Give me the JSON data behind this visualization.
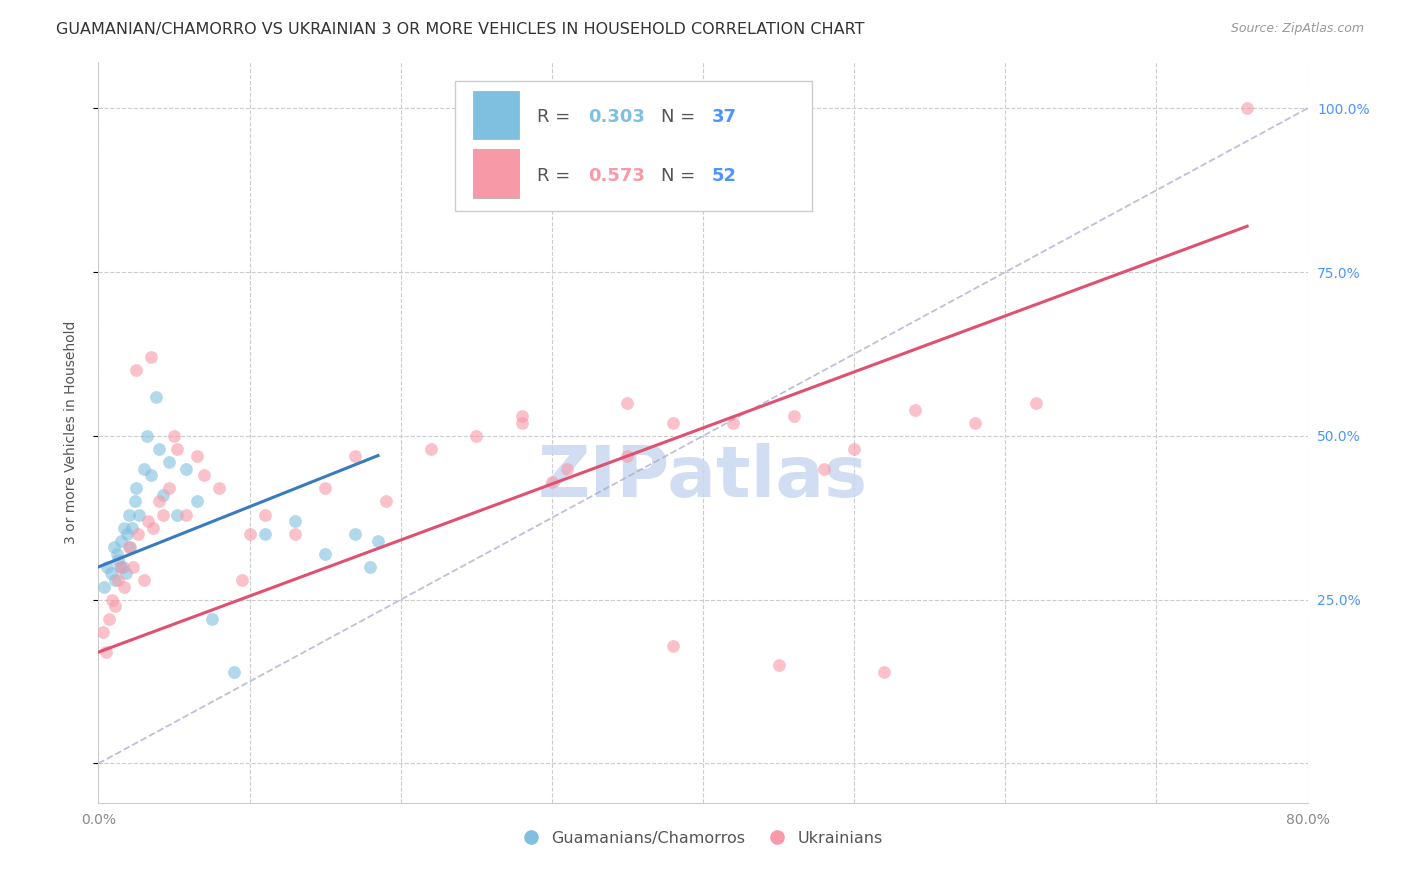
{
  "title": "GUAMANIAN/CHAMORRO VS UKRAINIAN 3 OR MORE VEHICLES IN HOUSEHOLD CORRELATION CHART",
  "source": "Source: ZipAtlas.com",
  "ylabel": "3 or more Vehicles in Household",
  "xlim": [
    0.0,
    80.0
  ],
  "ylim": [
    -6.0,
    107.0
  ],
  "yticks": [
    0,
    25,
    50,
    75,
    100
  ],
  "ytick_labels_right": [
    "",
    "25.0%",
    "50.0%",
    "75.0%",
    "100.0%"
  ],
  "xtick_positions": [
    0,
    10,
    20,
    30,
    40,
    50,
    60,
    70,
    80
  ],
  "xtick_labels": [
    "0.0%",
    "",
    "",
    "",
    "",
    "",
    "",
    "",
    "80.0%"
  ],
  "background_color": "#ffffff",
  "grid_color": "#cccccc",
  "watermark_text": "ZIPatlas",
  "watermark_color": "#c8d8f0",
  "legend_R1": "0.303",
  "legend_N1": "37",
  "legend_R2": "0.573",
  "legend_N2": "52",
  "legend_color1": "#7fbfdf",
  "legend_color2": "#f899a8",
  "series1_color": "#7fbfdf",
  "series2_color": "#f899a8",
  "reg_line1_color": "#3a7abf",
  "reg_line2_color": "#e05070",
  "right_tick_color": "#4d94ff",
  "title_fontsize": 11.5,
  "tick_fontsize": 10,
  "guamanian_x": [
    0.4,
    0.6,
    0.8,
    1.0,
    1.1,
    1.2,
    1.3,
    1.4,
    1.5,
    1.6,
    1.7,
    1.8,
    1.9,
    2.0,
    2.1,
    2.2,
    2.4,
    2.5,
    2.7,
    3.0,
    3.2,
    3.5,
    3.8,
    4.0,
    4.3,
    4.7,
    5.2,
    5.8,
    6.5,
    7.5,
    9.0,
    11.0,
    13.0,
    15.0,
    17.0,
    18.0,
    18.5
  ],
  "guamanian_y": [
    27,
    30,
    29,
    33,
    28,
    32,
    31,
    30,
    34,
    30,
    36,
    29,
    35,
    38,
    33,
    36,
    40,
    42,
    38,
    45,
    50,
    44,
    56,
    48,
    41,
    46,
    38,
    45,
    40,
    22,
    14,
    35,
    37,
    32,
    35,
    30,
    34
  ],
  "ukrainian_x": [
    0.3,
    0.5,
    0.7,
    0.9,
    1.1,
    1.3,
    1.5,
    1.7,
    2.0,
    2.3,
    2.6,
    3.0,
    3.3,
    3.6,
    4.0,
    4.3,
    4.7,
    5.2,
    5.8,
    6.5,
    7.0,
    8.0,
    9.5,
    11.0,
    13.0,
    15.0,
    17.0,
    19.0,
    22.0,
    25.0,
    28.0,
    31.0,
    35.0,
    38.0,
    42.0,
    46.0,
    50.0,
    54.0,
    58.0,
    62.0,
    38.0,
    48.0,
    45.0,
    52.0,
    30.0,
    35.0,
    28.0,
    10.0,
    5.0,
    3.5,
    2.5,
    76.0
  ],
  "ukrainian_y": [
    20,
    17,
    22,
    25,
    24,
    28,
    30,
    27,
    33,
    30,
    35,
    28,
    37,
    36,
    40,
    38,
    42,
    48,
    38,
    47,
    44,
    42,
    28,
    38,
    35,
    42,
    47,
    40,
    48,
    50,
    52,
    45,
    55,
    52,
    52,
    53,
    48,
    54,
    52,
    55,
    18,
    45,
    15,
    14,
    43,
    47,
    53,
    35,
    50,
    62,
    60,
    100
  ],
  "reg1_x0": 0.0,
  "reg1_y0": 30.0,
  "reg1_x1": 18.5,
  "reg1_y1": 47.0,
  "reg2_x0": 0.0,
  "reg2_y0": 17.0,
  "reg2_x1": 76.0,
  "reg2_y1": 82.0,
  "diag_x0": 0.0,
  "diag_y0": 0.0,
  "diag_x1": 80.0,
  "diag_y1": 100.0
}
